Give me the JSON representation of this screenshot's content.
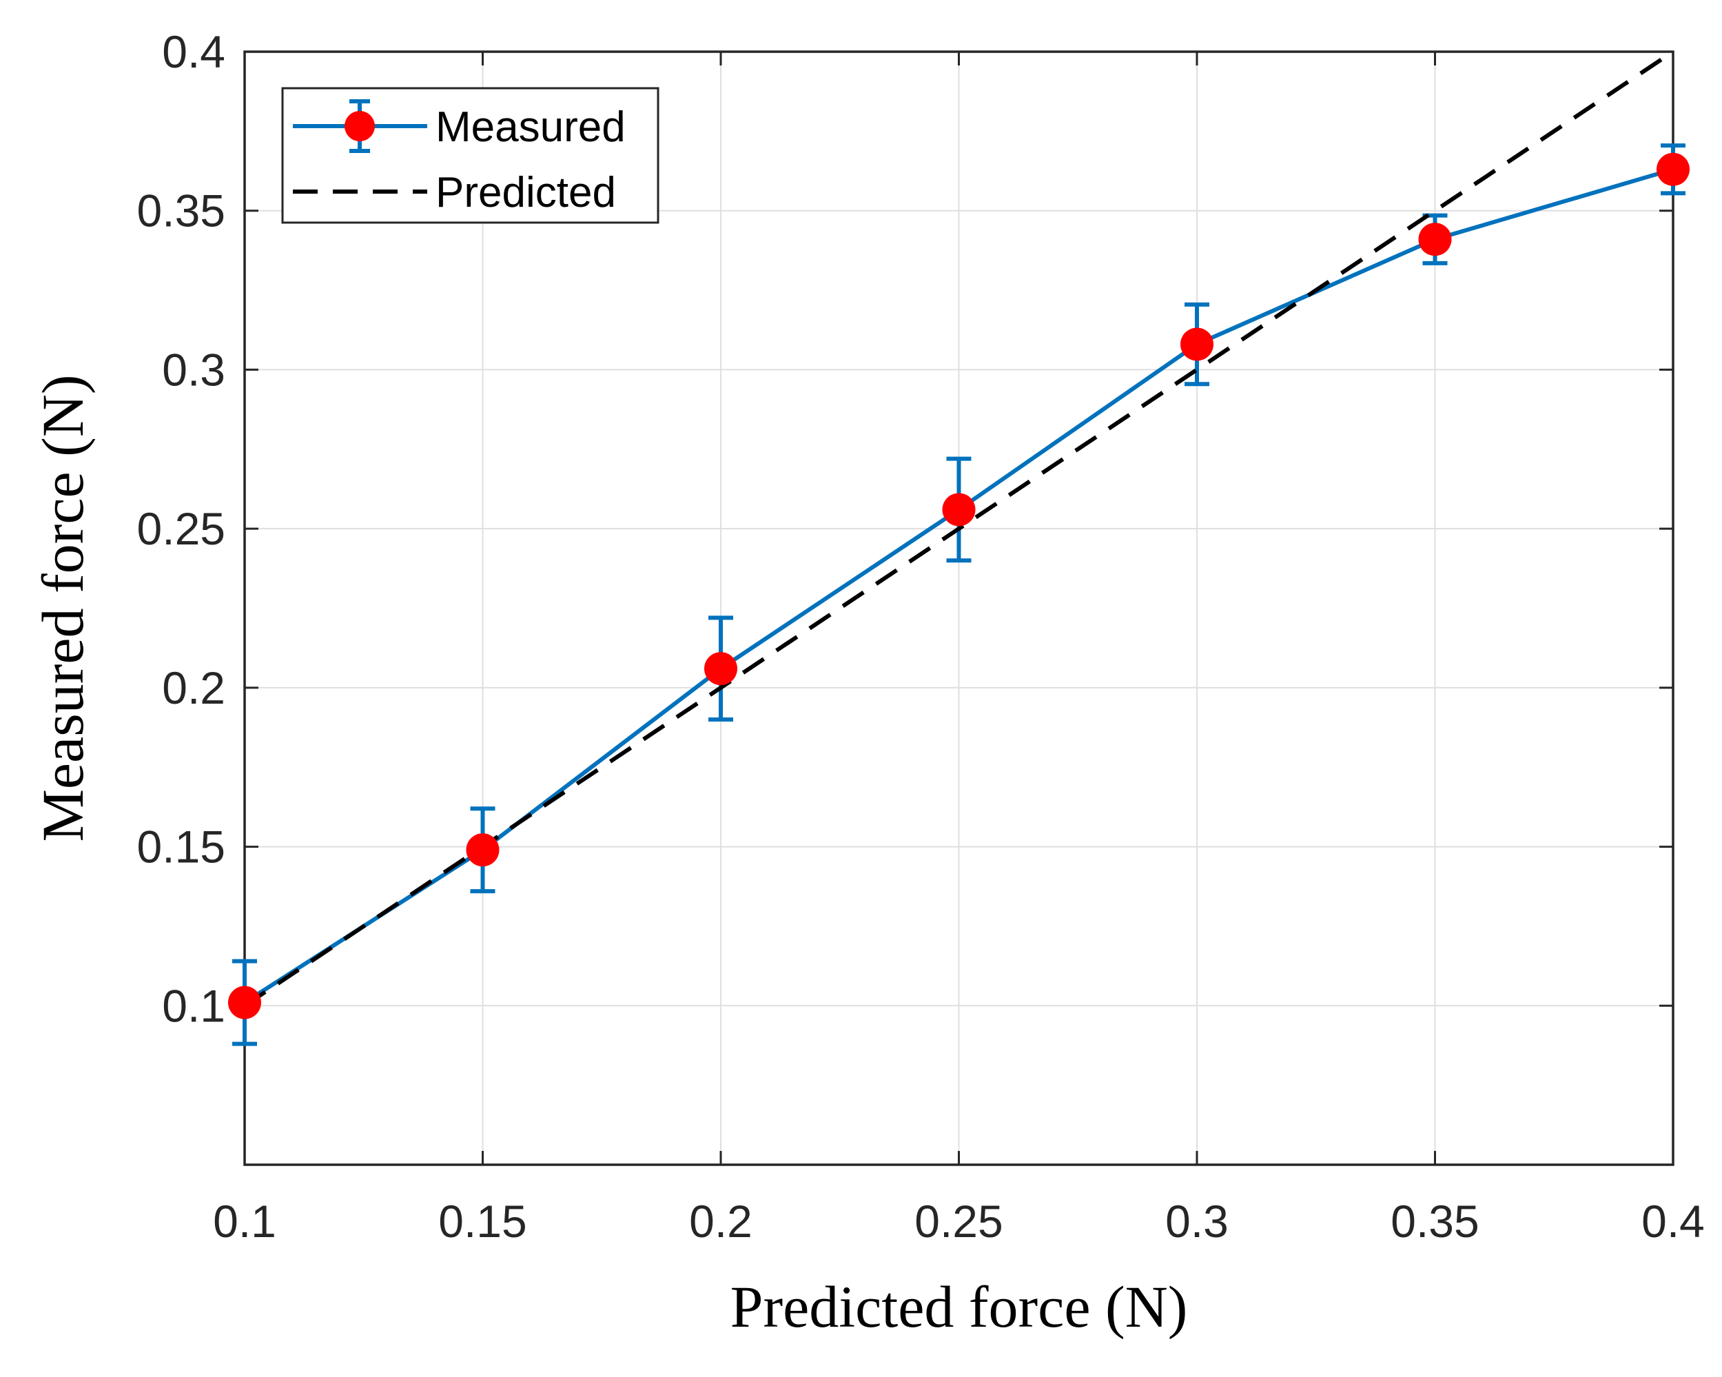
{
  "chart_data": {
    "type": "line",
    "title": "",
    "xlabel": "Predicted force (N)",
    "ylabel": "Measured force (N)",
    "xlim": [
      0.1,
      0.4
    ],
    "ylim": [
      0.05,
      0.4
    ],
    "xticks": [
      "0.1",
      "0.15",
      "0.2",
      "0.25",
      "0.3",
      "0.35",
      "0.4"
    ],
    "yticks": [
      "0.1",
      "0.15",
      "0.2",
      "0.25",
      "0.3",
      "0.35",
      "0.4"
    ],
    "grid": true,
    "legend_position": "top-left",
    "series": [
      {
        "name": "Measured",
        "style": "solid line with markers and error bars",
        "line_color": "#0072BD",
        "marker_color": "#FF0000",
        "x": [
          0.1,
          0.15,
          0.2,
          0.25,
          0.3,
          0.35,
          0.4
        ],
        "y": [
          0.101,
          0.149,
          0.206,
          0.256,
          0.308,
          0.341,
          0.363
        ],
        "error": [
          0.013,
          0.013,
          0.016,
          0.016,
          0.0125,
          0.0075,
          0.0075
        ]
      },
      {
        "name": "Predicted",
        "style": "dashed line",
        "line_color": "#000000",
        "x": [
          0.1,
          0.4
        ],
        "y": [
          0.1,
          0.4
        ]
      }
    ]
  }
}
